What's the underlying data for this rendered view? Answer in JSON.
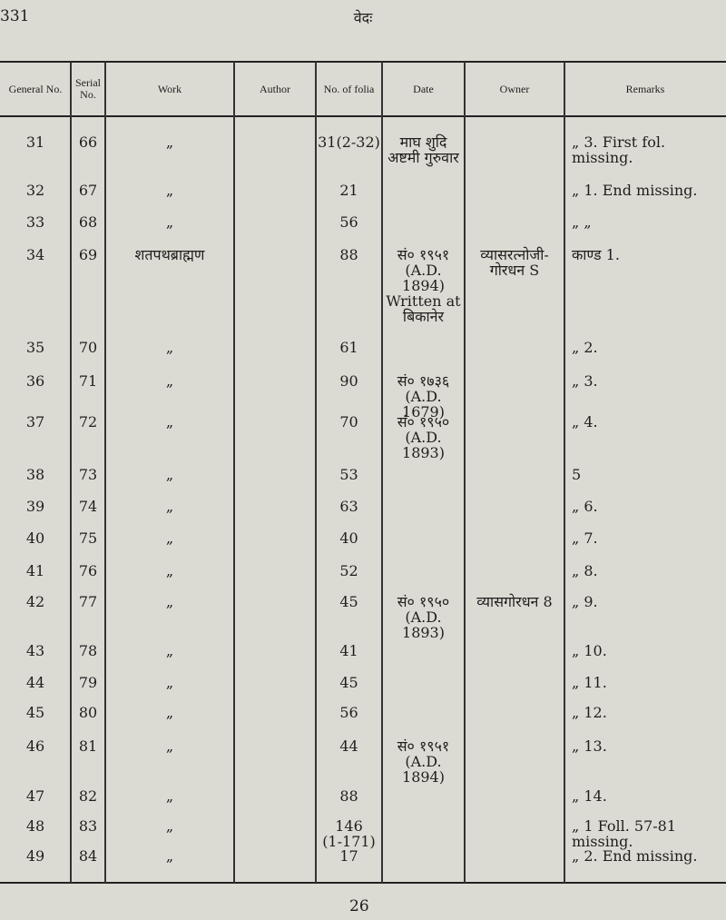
{
  "page_number": "331",
  "running_head": "वेदः",
  "footer_number": "26",
  "headers": {
    "general": "General No.",
    "serial": "Serial No.",
    "work": "Work",
    "author": "Author",
    "folia": "No. of folia",
    "date": "Date",
    "owner": "Owner",
    "remarks": "Remarks"
  },
  "rows": [
    {
      "general": "31",
      "serial": "66",
      "work": "„",
      "author": "",
      "folia": "31(2-32)",
      "date": "माघ शुदि\nअष्टमी गुरुवार",
      "owner": "",
      "remarks": "„  3.  First  fol.\nmissing."
    },
    {
      "general": "32",
      "serial": "67",
      "work": "„",
      "author": "",
      "folia": "21",
      "date": "",
      "owner": "",
      "remarks": "„ 1. End missing."
    },
    {
      "general": "33",
      "serial": "68",
      "work": "„",
      "author": "",
      "folia": "56",
      "date": "",
      "owner": "",
      "remarks": "„      „"
    },
    {
      "general": "34",
      "serial": "69",
      "work": "शतपथब्राह्मण",
      "author": "",
      "folia": "88",
      "date": "सं० १९५१\n(A.D. 1894)\nWritten at\nबिकानेर",
      "owner": "व्यासरत्नोजी-\nगोरधन S",
      "remarks": "काण्ड 1."
    },
    {
      "general": "35",
      "serial": "70",
      "work": "„",
      "author": "",
      "folia": "61",
      "date": "",
      "owner": "",
      "remarks": "„  2."
    },
    {
      "general": "36",
      "serial": "71",
      "work": "„",
      "author": "",
      "folia": "90",
      "date": "सं० १७३६\n(A.D. 1679)",
      "owner": "",
      "remarks": "„  3."
    },
    {
      "general": "37",
      "serial": "72",
      "work": "„",
      "author": "",
      "folia": "70",
      "date": "सं० १९५०\n(A.D. 1893)",
      "owner": "",
      "remarks": "„  4."
    },
    {
      "general": "38",
      "serial": "73",
      "work": "„",
      "author": "",
      "folia": "53",
      "date": "",
      "owner": "",
      "remarks": "     5"
    },
    {
      "general": "39",
      "serial": "74",
      "work": "„",
      "author": "",
      "folia": "63",
      "date": "",
      "owner": "",
      "remarks": "„  6."
    },
    {
      "general": "40",
      "serial": "75",
      "work": "„",
      "author": "",
      "folia": "40",
      "date": "",
      "owner": "",
      "remarks": "„  7."
    },
    {
      "general": "41",
      "serial": "76",
      "work": "„",
      "author": "",
      "folia": "52",
      "date": "",
      "owner": "",
      "remarks": "„  8."
    },
    {
      "general": "42",
      "serial": "77",
      "work": "„",
      "author": "",
      "folia": "45",
      "date": "सं० १९५०\n(A.D. 1893)",
      "owner": "व्यासगोरधन 8",
      "remarks": "„  9."
    },
    {
      "general": "43",
      "serial": "78",
      "work": "„",
      "author": "",
      "folia": "41",
      "date": "",
      "owner": "",
      "remarks": "„  10."
    },
    {
      "general": "44",
      "serial": "79",
      "work": "„",
      "author": "",
      "folia": "45",
      "date": "",
      "owner": "",
      "remarks": "„  11."
    },
    {
      "general": "45",
      "serial": "80",
      "work": "„",
      "author": "",
      "folia": "56",
      "date": "",
      "owner": "",
      "remarks": "„  12."
    },
    {
      "general": "46",
      "serial": "81",
      "work": "„",
      "author": "",
      "folia": "44",
      "date": "सं० १९५१\n(A.D. 1894)",
      "owner": "",
      "remarks": "„  13."
    },
    {
      "general": "47",
      "serial": "82",
      "work": "„",
      "author": "",
      "folia": "88",
      "date": "",
      "owner": "",
      "remarks": "„  14."
    },
    {
      "general": "48",
      "serial": "83",
      "work": "„",
      "author": "",
      "folia": "146\n(1-171)",
      "date": "",
      "owner": "",
      "remarks": "„  1  Foll.   57-81\nmissing."
    },
    {
      "general": "49",
      "serial": "84",
      "work": "„",
      "author": "",
      "folia": "17",
      "date": "",
      "owner": "",
      "remarks": "„  2. End missing."
    }
  ]
}
